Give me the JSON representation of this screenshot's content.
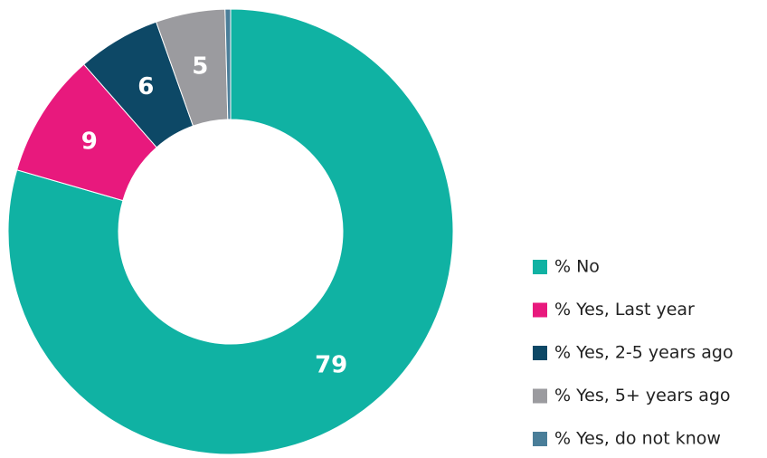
{
  "chart_data": {
    "type": "donut",
    "categories": [
      "% No",
      "% Yes, Last year",
      "% Yes, 2-5 years ago",
      "% Yes, 5+ years ago",
      "% Yes, do not know"
    ],
    "values": [
      79,
      9,
      6,
      5,
      0.4
    ],
    "colors": [
      "#10b2a3",
      "#e8197d",
      "#0d4866",
      "#9b9b9f",
      "#4a7e99"
    ],
    "legend": "right"
  }
}
